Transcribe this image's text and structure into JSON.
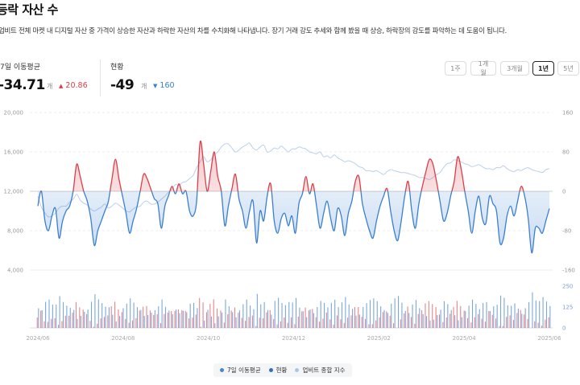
{
  "header": {
    "title": "등락 자산 수",
    "description": "업비트 전체 마켓 내 디지털 자산 중 가격이 상승한 자산과 하락한 자산의 차를 수치화해 나타냅니다. 장기 거래 강도 추세와 함께 봤을 때 상승, 하락장의 강도를 파악하는 데 도움이 됩니다."
  },
  "stats": {
    "ma7": {
      "label": "7일 이동평균",
      "value": "-34.71",
      "unit": "개",
      "change_arrow": "▲",
      "change": "20.86"
    },
    "current": {
      "label": "현황",
      "value": "-49",
      "unit": "개",
      "change_arrow": "▼",
      "change": "160"
    }
  },
  "periods": {
    "options": [
      "1주",
      "1개월",
      "3개월",
      "1년",
      "5년"
    ],
    "selected": "1년"
  },
  "legend": {
    "ma7": "7일 이동평균",
    "current": "현황",
    "index": "업비트 종합 지수"
  },
  "colors": {
    "up": "#d8404a",
    "down": "#3a7fd0",
    "index_line": "#b9d0ec",
    "legend_ma7": "#4a86d0",
    "legend_current": "#2f6fc4",
    "legend_index": "#a9c6ea"
  },
  "chart_data": {
    "type": "line",
    "x_ticks": [
      "2024/06",
      "2024/08",
      "2024/10",
      "2024/12",
      "2025/02",
      "2025/04",
      "2025/06"
    ],
    "x_range": [
      "2024-06-01",
      "2025-06-01"
    ],
    "left_axis": {
      "ticks": [
        "20,000",
        "16,000",
        "12,000",
        "8,000",
        "4,000"
      ],
      "range": [
        4000,
        20000
      ]
    },
    "right_axis": {
      "ticks": [
        "160",
        "80",
        "0",
        "-80",
        "-160"
      ],
      "range": [
        -160,
        160
      ]
    },
    "volume_axis": {
      "ticks": [
        "250",
        "125",
        "0"
      ],
      "range": [
        0,
        250
      ]
    },
    "grid": true,
    "baseline": 0,
    "series": [
      {
        "name": "7일 이동평균",
        "axis": "right",
        "values": [
          -30,
          0,
          -60,
          -80,
          -50,
          -35,
          -95,
          -60,
          -40,
          -30,
          0,
          55,
          30,
          0,
          -20,
          -55,
          -110,
          -80,
          -60,
          -40,
          -20,
          25,
          65,
          25,
          -10,
          -45,
          -85,
          -60,
          -35,
          0,
          35,
          25,
          5,
          -15,
          -25,
          -75,
          -30,
          -10,
          10,
          -5,
          15,
          -5,
          0,
          -40,
          -50,
          -20,
          100,
          55,
          0,
          40,
          80,
          30,
          0,
          -70,
          -30,
          5,
          35,
          -15,
          -40,
          -75,
          -40,
          -20,
          -105,
          -40,
          -60,
          -10,
          15,
          -60,
          -85,
          -55,
          -45,
          -70,
          -50,
          -85,
          -25,
          -5,
          30,
          -5,
          15,
          -30,
          -75,
          -45,
          -20,
          -55,
          -80,
          -35,
          -50,
          -90,
          -45,
          -20,
          20,
          30,
          -25,
          -55,
          -80,
          -95,
          -60,
          -30,
          -10,
          5,
          -40,
          -80,
          -100,
          -60,
          -10,
          20,
          -40,
          -75,
          -25,
          10,
          40,
          65,
          55,
          20,
          -20,
          -60,
          -45,
          -10,
          20,
          70,
          45,
          0,
          -40,
          -85,
          -40,
          -10,
          -55,
          -65,
          -10,
          -25,
          -40,
          -105,
          -95,
          -50,
          -30,
          -50,
          -20,
          10,
          -10,
          -55,
          -125,
          -75,
          -75,
          -85,
          -60,
          -35
        ]
      },
      {
        "name": "업비트 종합 지수",
        "axis": "left",
        "values": [
          11500,
          10400,
          9800,
          9400,
          9500,
          9800,
          10300,
          10500,
          10500,
          10900,
          11200,
          11700,
          11100,
          10800,
          10600,
          10200,
          10000,
          10200,
          10400,
          10700,
          10300,
          10500,
          10800,
          10600,
          10300,
          10000,
          9900,
          10200,
          10400,
          10500,
          10900,
          11000,
          10700,
          10700,
          10900,
          11200,
          11500,
          11900,
          12200,
          12700,
          12600,
          12900,
          13000,
          13300,
          13600,
          14400,
          15000,
          15500,
          15000,
          15200,
          15700,
          16000,
          16500,
          16800,
          16800,
          16400,
          16000,
          16200,
          16500,
          16700,
          16900,
          16400,
          16200,
          16500,
          16700,
          16000,
          16100,
          16400,
          16300,
          16600,
          16300,
          16000,
          16300,
          16300,
          16500,
          16400,
          16300,
          16000,
          15900,
          15800,
          16000,
          15500,
          15600,
          15400,
          15700,
          15400,
          15200,
          15000,
          15100,
          15000,
          14800,
          14500,
          14400,
          14100,
          14100,
          14000,
          14100,
          13900,
          13700,
          14000,
          14200,
          14100,
          14000,
          13900,
          13900,
          13800,
          13700,
          13600,
          13400,
          13400,
          13300,
          13200,
          13400,
          13700,
          13900,
          14400,
          14800,
          14900,
          15200,
          15100,
          15000,
          14800,
          14700,
          14500,
          14600,
          14700,
          14500,
          14300,
          14300,
          14200,
          14400,
          14400,
          14600,
          14300,
          14100,
          14000,
          14200,
          14100,
          14300,
          14400,
          14200,
          14100,
          14000,
          13900,
          14200,
          14300
        ]
      }
    ]
  }
}
